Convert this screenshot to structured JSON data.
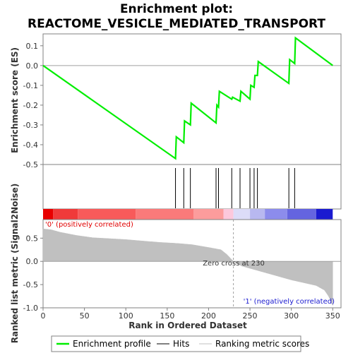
{
  "chart_data": {
    "type": "line",
    "title_line1": "Enrichment plot:",
    "title_line2": "REACTOME_VESICLE_MEDIATED_TRANSPORT",
    "xlabel": "Rank in Ordered Dataset",
    "ylabel_top": "Enrichment score (ES)",
    "ylabel_bottom": "Ranked list metric (Signal2Noise)",
    "xlim": [
      0,
      360
    ],
    "es_ylim": [
      -0.5,
      0.16
    ],
    "metric_ylim": [
      -1.0,
      0.9
    ],
    "x_ticks": [
      0,
      50,
      100,
      150,
      200,
      250,
      300,
      350
    ],
    "es_ticks": [
      -0.5,
      -0.4,
      -0.3,
      -0.2,
      -0.1,
      0.0,
      0.1
    ],
    "es_tick_labels": [
      "-0.5",
      "-0.4",
      "-0.3",
      "-0.2",
      "-0.1",
      "0.0",
      "0.1"
    ],
    "metric_ticks": [
      -1.0,
      -0.5,
      0.0,
      0.5
    ],
    "metric_tick_labels": [
      "-1.0",
      "-0.5",
      "0.0",
      "0.5"
    ],
    "enrichment_profile": {
      "name": "Enrichment profile",
      "color": "#00ee00",
      "x": [
        0,
        160,
        161,
        170,
        171,
        178,
        179,
        209,
        210,
        212,
        213,
        228,
        229,
        238,
        239,
        250,
        251,
        255,
        256,
        259,
        260,
        297,
        298,
        304,
        305,
        350
      ],
      "y": [
        0.0,
        -0.47,
        -0.36,
        -0.39,
        -0.28,
        -0.3,
        -0.19,
        -0.29,
        -0.2,
        -0.21,
        -0.13,
        -0.17,
        -0.16,
        -0.18,
        -0.13,
        -0.17,
        -0.1,
        -0.11,
        -0.05,
        -0.05,
        0.02,
        -0.09,
        0.03,
        0.01,
        0.14,
        0.0
      ]
    },
    "hits": {
      "name": "Hits",
      "color": "#000000",
      "x": [
        160,
        170,
        178,
        209,
        212,
        228,
        238,
        250,
        255,
        259,
        297,
        304
      ]
    },
    "ranking_metric": {
      "name": "Ranking metric scores",
      "color": "#c0c0c0",
      "n": 350,
      "x": [
        0,
        10,
        20,
        40,
        60,
        80,
        100,
        120,
        140,
        160,
        180,
        200,
        215,
        222,
        230,
        240,
        260,
        280,
        300,
        320,
        330,
        340,
        345,
        350
      ],
      "y": [
        0.7,
        0.68,
        0.63,
        0.56,
        0.51,
        0.49,
        0.47,
        0.44,
        0.41,
        0.39,
        0.36,
        0.3,
        0.25,
        0.15,
        0.0,
        -0.1,
        -0.2,
        -0.3,
        -0.4,
        -0.48,
        -0.52,
        -0.62,
        -0.75,
        -0.95
      ]
    },
    "zero_cross_label": "Zero cross at 230",
    "zero_cross_x": 230,
    "positive_label": "'0' (positively correlated)",
    "negative_label": "'1' (negatively correlated)",
    "positive_label_color": "#e00000",
    "negative_label_color": "#1a1ad0",
    "color_bar": [
      {
        "x_from": 0,
        "x_to": 12,
        "color": "#e80000"
      },
      {
        "x_from": 12,
        "x_to": 42,
        "color": "#f03a3a"
      },
      {
        "x_from": 42,
        "x_to": 112,
        "color": "#f85a5a"
      },
      {
        "x_from": 112,
        "x_to": 182,
        "color": "#fa7a7a"
      },
      {
        "x_from": 182,
        "x_to": 218,
        "color": "#fc9c9c"
      },
      {
        "x_from": 218,
        "x_to": 230,
        "color": "#fcc8dc"
      },
      {
        "x_from": 230,
        "x_to": 250,
        "color": "#dcdcf8"
      },
      {
        "x_from": 250,
        "x_to": 268,
        "color": "#b8b8f0"
      },
      {
        "x_from": 268,
        "x_to": 295,
        "color": "#8c8cec"
      },
      {
        "x_from": 295,
        "x_to": 330,
        "color": "#6464e0"
      },
      {
        "x_from": 330,
        "x_to": 350,
        "color": "#1a1ad0"
      }
    ],
    "legend": [
      {
        "key": "enrichment",
        "label": "Enrichment profile",
        "color": "#00ee00"
      },
      {
        "key": "hits",
        "label": "Hits",
        "color": "#000000"
      },
      {
        "key": "metric",
        "label": "Ranking metric scores",
        "color": "#c0c0c0"
      }
    ],
    "legend_placement": "bottom",
    "grid": false
  }
}
